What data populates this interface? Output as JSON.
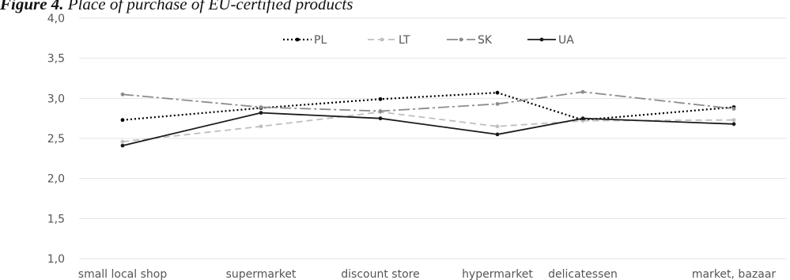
{
  "caption": {
    "figure_label": "Figure 4.",
    "text": "Place of purchase of EU-certified products"
  },
  "chart_data": {
    "type": "line",
    "categories": [
      "small local shop",
      "supermarket",
      "discount store",
      "hypermarket",
      "delicatessen",
      "market, bazaar"
    ],
    "yticks": [
      "1,0",
      "1,5",
      "2,0",
      "2,5",
      "3,0",
      "3,5",
      "4,0"
    ],
    "ylim": [
      1.0,
      4.0
    ],
    "grid": true,
    "legend_position": "top-center",
    "series": [
      {
        "name": "PL",
        "values": [
          2.73,
          2.88,
          2.99,
          3.07,
          2.73,
          2.89
        ],
        "color": "#000000",
        "style": "dotted",
        "marker": "circle"
      },
      {
        "name": "LT",
        "values": [
          2.46,
          2.65,
          2.83,
          2.65,
          2.72,
          2.73
        ],
        "color": "#bfbfbf",
        "style": "dashed",
        "marker": "circle"
      },
      {
        "name": "SK",
        "values": [
          3.05,
          2.89,
          2.84,
          2.93,
          3.08,
          2.87
        ],
        "color": "#8c8c8c",
        "style": "dashdot",
        "marker": "circle"
      },
      {
        "name": "UA",
        "values": [
          2.41,
          2.82,
          2.75,
          2.55,
          2.75,
          2.68
        ],
        "color": "#1a1a1a",
        "style": "solid",
        "marker": "circle"
      }
    ]
  }
}
